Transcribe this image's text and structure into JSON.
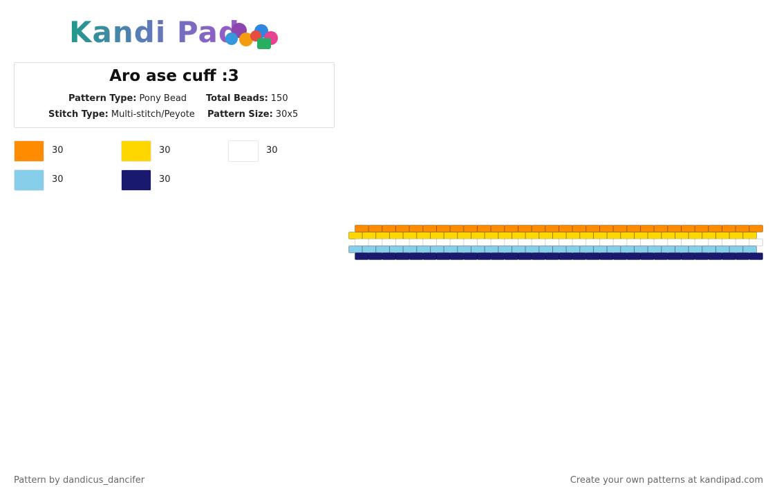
{
  "header": {
    "logo": "Kandi Pad"
  },
  "pattern": {
    "title": "Aro ase cuff :3",
    "pattern_type_label": "Pattern Type:",
    "pattern_type": "Pony Bead",
    "total_beads_label": "Total Beads:",
    "total_beads": 150,
    "stitch_type_label": "Stitch Type:",
    "stitch_type": "Multi-stitch/Peyote",
    "pattern_size_label": "Pattern Size:",
    "pattern_size": "30x5"
  },
  "palette": [
    {
      "color": "#ff8c00",
      "count": 30
    },
    {
      "color": "#ffd700",
      "count": 30
    },
    {
      "color": "#ffffff",
      "count": 30
    },
    {
      "color": "#87ceeb",
      "count": 30
    },
    {
      "color": "#191970",
      "count": 30
    }
  ],
  "beads": {
    "columns": 30,
    "rows": [
      "#ff8c00",
      "#ffd700",
      "#ffffff",
      "#87ceeb",
      "#191970"
    ]
  },
  "footer": {
    "left": "Pattern by dandicus_dancifer",
    "right": "Create your own patterns at kandipad.com"
  }
}
